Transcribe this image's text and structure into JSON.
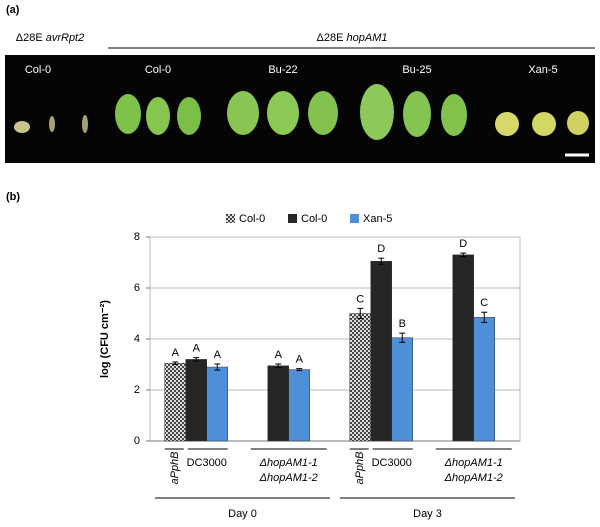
{
  "panel_a": {
    "label": "(a)",
    "left_title": [
      "Δ28E",
      "avrRpt2"
    ],
    "right_title": [
      "Δ28E",
      "hopAM1"
    ],
    "genotypes": [
      "Col-0",
      "Col-0",
      "Bu-22",
      "Bu-25",
      "Xan-5"
    ]
  },
  "chart_data": {
    "type": "bar",
    "panel_label": "(b)",
    "y_label": "log (CFU cm⁻²)",
    "categories": [
      null,
      null,
      null,
      null
    ],
    "strain_labels": [
      [
        "aPphB",
        "DC3000"
      ],
      [
        "ΔhopAM1-1",
        "ΔhopAM1-2"
      ],
      [
        "aPphB",
        "DC3000"
      ],
      [
        "ΔhopAM1-1",
        "ΔhopAM1-2"
      ]
    ],
    "days": [
      "Day 0",
      "Day 3"
    ],
    "series": [
      {
        "name": "Col-0",
        "color": "#555555",
        "pattern": true,
        "values": [
          3.05,
          null,
          5.0,
          null
        ],
        "errors": [
          0.05,
          null,
          0.2,
          null
        ],
        "letters": [
          "A",
          null,
          "C",
          null
        ]
      },
      {
        "name": "Col-0",
        "color": "#262626",
        "pattern": false,
        "values": [
          3.2,
          2.95,
          7.05,
          7.3
        ],
        "errors": [
          0.07,
          0.07,
          0.12,
          0.07
        ],
        "letters": [
          "A",
          "A",
          "D",
          "D"
        ]
      },
      {
        "name": "Xan-5",
        "color": "#4f8fd8",
        "pattern": false,
        "values": [
          2.9,
          2.8,
          4.05,
          4.85
        ],
        "errors": [
          0.12,
          0.04,
          0.18,
          0.2
        ],
        "letters": [
          "A",
          "A",
          "B",
          "C"
        ]
      }
    ],
    "ylim": [
      0,
      8
    ],
    "yticks": [
      0,
      2,
      4,
      6,
      8
    ],
    "grid": true
  }
}
